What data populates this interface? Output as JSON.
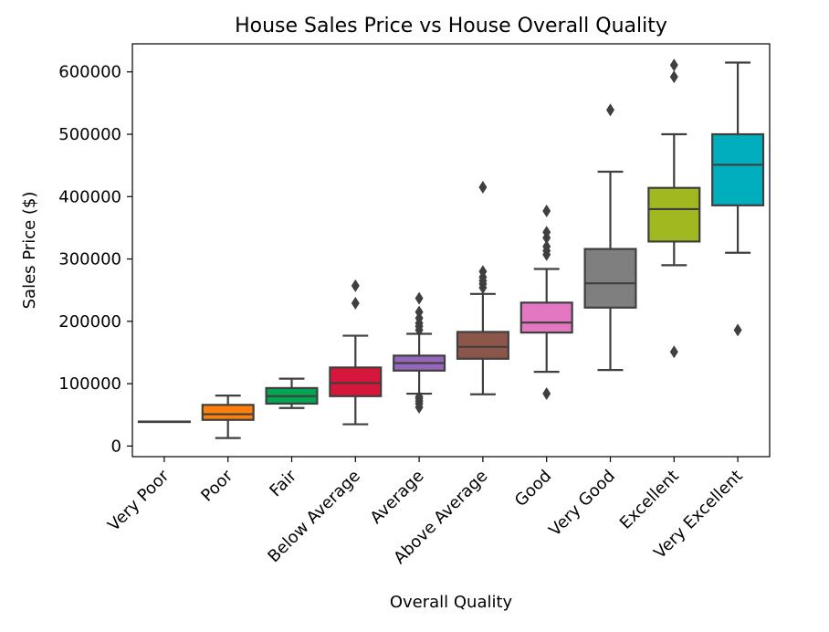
{
  "chart_data": {
    "type": "box",
    "title": "House Sales Price vs House Overall Quality",
    "xlabel": "Overall Quality",
    "ylabel": "Sales Price ($)",
    "ylim": [
      -17000,
      645000
    ],
    "yticks": [
      0,
      100000,
      200000,
      300000,
      400000,
      500000,
      600000
    ],
    "ytick_labels": [
      "0",
      "100000",
      "200000",
      "300000",
      "400000",
      "500000",
      "600000"
    ],
    "categories": [
      "Very Poor",
      "Poor",
      "Fair",
      "Below Average",
      "Average",
      "Above Average",
      "Good",
      "Very Good",
      "Excellent",
      "Very Excellent"
    ],
    "boxes": [
      {
        "category": "Very Poor",
        "color": "#1f77b4",
        "whisker_low": 39300,
        "q1": 39300,
        "median": 39300,
        "q3": 39300,
        "whisker_high": 39300,
        "outliers": []
      },
      {
        "category": "Poor",
        "color": "#ff7f0e",
        "whisker_low": 12800,
        "q1": 42000,
        "median": 51000,
        "q3": 66000,
        "whisker_high": 81000,
        "outliers": []
      },
      {
        "category": "Fair",
        "color": "#00a651",
        "whisker_low": 61000,
        "q1": 68000,
        "median": 80000,
        "q3": 93000,
        "whisker_high": 108000,
        "outliers": []
      },
      {
        "category": "Below Average",
        "color": "#d6163a",
        "whisker_low": 34900,
        "q1": 80000,
        "median": 101000,
        "q3": 126000,
        "whisker_high": 177000,
        "outliers": [
          229000,
          257000
        ]
      },
      {
        "category": "Average",
        "color": "#9467bd",
        "whisker_low": 84000,
        "q1": 121000,
        "median": 133000,
        "q3": 145000,
        "whisker_high": 180000,
        "outliers": [
          62000,
          68000,
          72000,
          76000,
          79000,
          186000,
          192000,
          197000,
          205000,
          215000,
          237000
        ]
      },
      {
        "category": "Above Average",
        "color": "#8c564b",
        "whisker_low": 83000,
        "q1": 140000,
        "median": 159000,
        "q3": 183000,
        "whisker_high": 244000,
        "outliers": [
          254000,
          260000,
          265000,
          271000,
          280000,
          415000
        ]
      },
      {
        "category": "Good",
        "color": "#e377c2",
        "whisker_low": 119000,
        "q1": 182000,
        "median": 198000,
        "q3": 230000,
        "whisker_high": 284000,
        "outliers": [
          84000,
          307000,
          313000,
          320000,
          334000,
          343000,
          377000
        ]
      },
      {
        "category": "Very Good",
        "color": "#7f7f7f",
        "whisker_low": 122000,
        "q1": 222000,
        "median": 261000,
        "q3": 316000,
        "whisker_high": 440000,
        "outliers": [
          539000
        ]
      },
      {
        "category": "Excellent",
        "color": "#a1b821",
        "whisker_low": 290000,
        "q1": 328000,
        "median": 380000,
        "q3": 414000,
        "whisker_high": 500000,
        "outliers": [
          151000,
          592000,
          611000
        ]
      },
      {
        "category": "Very Excellent",
        "color": "#00aebd",
        "whisker_low": 310000,
        "q1": 386000,
        "median": 451000,
        "q3": 500000,
        "whisker_high": 615000,
        "outliers": [
          186000
        ]
      }
    ],
    "grid": false,
    "legend": "none"
  }
}
